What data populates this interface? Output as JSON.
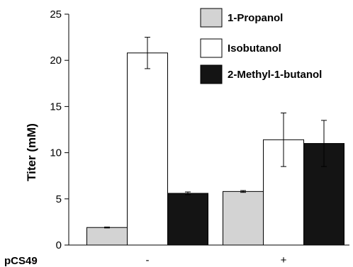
{
  "chart_data": {
    "type": "bar",
    "title": "",
    "xlabel": "",
    "ylabel": "Titer (mM)",
    "row_label": "pCS49",
    "categories": [
      "-",
      "+"
    ],
    "ylim": [
      0,
      25
    ],
    "yticks": [
      0,
      5,
      10,
      15,
      20,
      25
    ],
    "grid": false,
    "legend_position": "top-right",
    "series": [
      {
        "name": "1-Propanol",
        "color": "#d3d3d3",
        "values": [
          1.9,
          5.8
        ],
        "errors": [
          0.05,
          0.1
        ]
      },
      {
        "name": "Isobutanol",
        "color": "#ffffff",
        "values": [
          20.8,
          11.4
        ],
        "errors": [
          1.7,
          2.9
        ]
      },
      {
        "name": "2-Methyl-1-butanol",
        "color": "#141414",
        "values": [
          5.6,
          11.0
        ],
        "errors": [
          0.15,
          2.5
        ]
      }
    ]
  }
}
